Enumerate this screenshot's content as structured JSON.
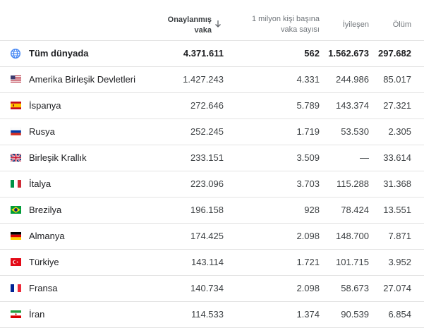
{
  "header": {
    "cases_label_line1": "Onaylanmış",
    "cases_label_line2": "vaka",
    "permil_label_line1": "1 milyon kişi başına",
    "permil_label_line2": "vaka sayısı",
    "recovered_label": "İyileşen",
    "deaths_label": "Ölüm"
  },
  "world": {
    "name": "Tüm dünyada",
    "cases": "4.371.611",
    "per_million": "562",
    "recovered": "1.562.673",
    "deaths": "297.682"
  },
  "rows": [
    {
      "name": "Amerika Birleşik Devletleri",
      "cases": "1.427.243",
      "per_million": "4.331",
      "recovered": "244.986",
      "deaths": "85.017",
      "flag": "us-flag-icon"
    },
    {
      "name": "İspanya",
      "cases": "272.646",
      "per_million": "5.789",
      "recovered": "143.374",
      "deaths": "27.321",
      "flag": "es-flag-icon"
    },
    {
      "name": "Rusya",
      "cases": "252.245",
      "per_million": "1.719",
      "recovered": "53.530",
      "deaths": "2.305",
      "flag": "ru-flag-icon"
    },
    {
      "name": "Birleşik Krallık",
      "cases": "233.151",
      "per_million": "3.509",
      "recovered": "—",
      "deaths": "33.614",
      "flag": "gb-flag-icon"
    },
    {
      "name": "İtalya",
      "cases": "223.096",
      "per_million": "3.703",
      "recovered": "115.288",
      "deaths": "31.368",
      "flag": "it-flag-icon"
    },
    {
      "name": "Brezilya",
      "cases": "196.158",
      "per_million": "928",
      "recovered": "78.424",
      "deaths": "13.551",
      "flag": "br-flag-icon"
    },
    {
      "name": "Almanya",
      "cases": "174.425",
      "per_million": "2.098",
      "recovered": "148.700",
      "deaths": "7.871",
      "flag": "de-flag-icon"
    },
    {
      "name": "Türkiye",
      "cases": "143.114",
      "per_million": "1.721",
      "recovered": "101.715",
      "deaths": "3.952",
      "flag": "tr-flag-icon"
    },
    {
      "name": "Fransa",
      "cases": "140.734",
      "per_million": "2.098",
      "recovered": "58.673",
      "deaths": "27.074",
      "flag": "fr-flag-icon"
    },
    {
      "name": "İran",
      "cases": "114.533",
      "per_million": "1.374",
      "recovered": "90.539",
      "deaths": "6.854",
      "flag": "ir-flag-icon"
    }
  ]
}
